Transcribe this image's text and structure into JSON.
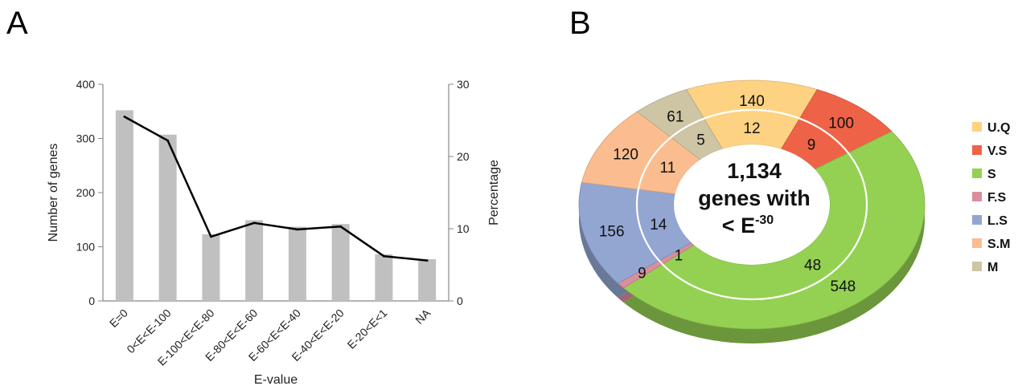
{
  "panels": {
    "a": "A",
    "b": "B"
  },
  "chart_data": [
    {
      "type": "bar",
      "categories": [
        "E=0",
        "0<E<E-100",
        "E-100<E<E-80",
        "E-80<E<E-60",
        "E-60<E<E-40",
        "E-40<E<E-20",
        "E-20<E<1",
        "NA"
      ],
      "series": [
        {
          "values": [
            352,
            307,
            123,
            149,
            137,
            142,
            86,
            77
          ],
          "axis": "left",
          "color": "#c0c0c0"
        },
        {
          "values": [
            25.5,
            22.2,
            8.9,
            10.8,
            9.9,
            10.3,
            6.2,
            5.6
          ],
          "axis": "right",
          "type": "line",
          "color": "#000000"
        }
      ],
      "xlabel": "E-value",
      "ylabel": "Number of genes",
      "y2label": "Percentage",
      "ylim": [
        0,
        400
      ],
      "y2lim": [
        0,
        30
      ],
      "yticks": [
        "0",
        "100",
        "200",
        "300",
        "400"
      ],
      "y2ticks": [
        "0",
        "10",
        "20",
        "30"
      ],
      "grid": false
    },
    {
      "type": "pie",
      "center_text": {
        "line1": "1,134",
        "line2": "genes with",
        "line3": "< E",
        "sup": "-30"
      },
      "legend_position": "right",
      "categories": [
        "U.Q",
        "V.S",
        "S",
        "F.S",
        "L.S",
        "S.M",
        "M"
      ],
      "colors": [
        "#fdd282",
        "#ee6347",
        "#94d152",
        "#d98f9b",
        "#93a6d2",
        "#fbbd8f",
        "#cdc5a3"
      ],
      "outer_values": [
        140,
        100,
        548,
        9,
        156,
        120,
        61
      ],
      "inner_values": [
        12,
        9,
        48,
        1,
        14,
        11,
        5
      ],
      "outer_labels": [
        "140",
        "100",
        "548",
        "9",
        "156",
        "120",
        "61"
      ],
      "inner_labels": [
        "12",
        "9",
        "48",
        "1",
        "14",
        "11",
        "5"
      ]
    }
  ]
}
